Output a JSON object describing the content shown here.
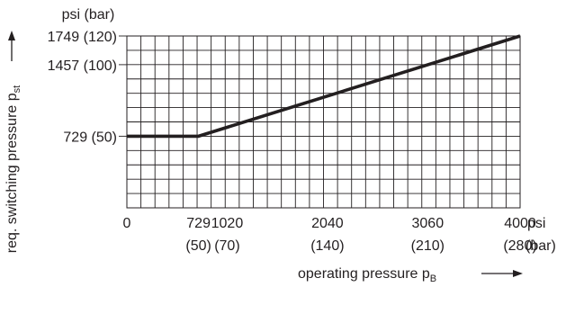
{
  "chart_data": {
    "type": "line",
    "title": "",
    "x": [
      0,
      729,
      4000
    ],
    "values": [
      729,
      729,
      1749
    ],
    "xlim": [
      0,
      4000
    ],
    "ylim": [
      0,
      1749
    ],
    "grid": true,
    "x_axis": {
      "unit_primary": "psi",
      "unit_secondary": "(bar)",
      "title": "operating pressure p",
      "title_subscript": "B",
      "ticks": [
        {
          "value": 0,
          "label": "0",
          "sub": ""
        },
        {
          "value": 729,
          "label": "729",
          "sub": "(50)"
        },
        {
          "value": 1020,
          "label": "1020",
          "sub": "(70)"
        },
        {
          "value": 2040,
          "label": "2040",
          "sub": "(140)"
        },
        {
          "value": 3060,
          "label": "3060",
          "sub": "(210)"
        },
        {
          "value": 4000,
          "label": "4000",
          "sub": "(280)"
        }
      ]
    },
    "y_axis": {
      "unit": "psi (bar)",
      "title": "req. switching pressure p",
      "title_subscript": "st",
      "ticks": [
        {
          "value": 729,
          "label": "729 (50)"
        },
        {
          "value": 1457,
          "label": "1457 (100)"
        },
        {
          "value": 1749,
          "label": "1749 (120)"
        }
      ]
    }
  }
}
